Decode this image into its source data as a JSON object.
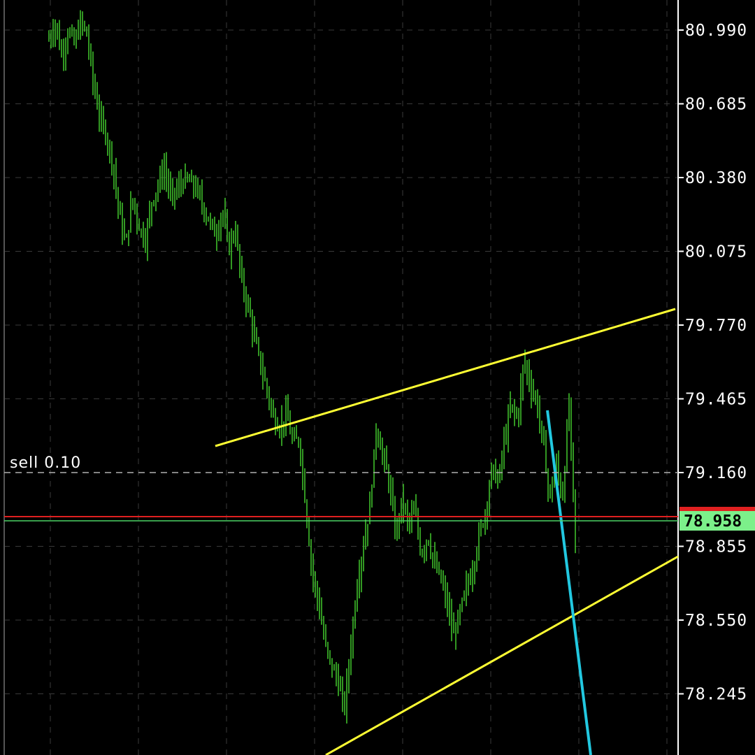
{
  "chart": {
    "instrument_color": "#3fbf2a",
    "background": "#000000",
    "axis_color": "#ffffff",
    "grid_color": "#3a3a3a",
    "y_ticks": [
      "80.990",
      "80.685",
      "80.380",
      "80.075",
      "79.770",
      "79.465",
      "79.160",
      "78.855",
      "78.550",
      "78.245"
    ],
    "current_price": "78.958",
    "current_price_bg": "#7cf08a",
    "ask_line_color": "#e02020",
    "bid_line_color": "#4cd264",
    "order": {
      "label": "sell 0.10",
      "price": 79.16,
      "line_color": "#b0b0b0"
    },
    "trendline_color": "#ffff33",
    "projection_color": "#22c8e0"
  },
  "chart_data": {
    "type": "line",
    "title": "",
    "xlabel": "",
    "ylabel": "",
    "ylim": [
      78.1,
      81.1
    ],
    "grid": true,
    "y": [
      80.95,
      81.02,
      80.88,
      80.99,
      80.93,
      81.03,
      80.96,
      80.75,
      80.62,
      80.55,
      80.43,
      80.22,
      80.1,
      80.3,
      80.18,
      80.12,
      80.28,
      80.35,
      80.42,
      80.3,
      80.33,
      80.37,
      80.36,
      80.33,
      80.26,
      80.2,
      80.14,
      80.25,
      80.08,
      80.17,
      79.95,
      79.85,
      79.72,
      79.6,
      79.5,
      79.38,
      79.35,
      79.4,
      79.28,
      79.3,
      79.02,
      78.75,
      78.62,
      78.45,
      78.36,
      78.3,
      78.18,
      78.44,
      78.7,
      78.86,
      79.02,
      79.35,
      79.23,
      79.12,
      78.9,
      79.05,
      78.95,
      79.0,
      78.82,
      78.9,
      78.78,
      78.72,
      78.62,
      78.48,
      78.58,
      78.68,
      78.76,
      78.9,
      79.0,
      79.18,
      79.12,
      79.3,
      79.44,
      79.38,
      79.63,
      79.52,
      79.45,
      79.28,
      79.05,
      79.2,
      79.05,
      79.45,
      78.88
    ]
  }
}
